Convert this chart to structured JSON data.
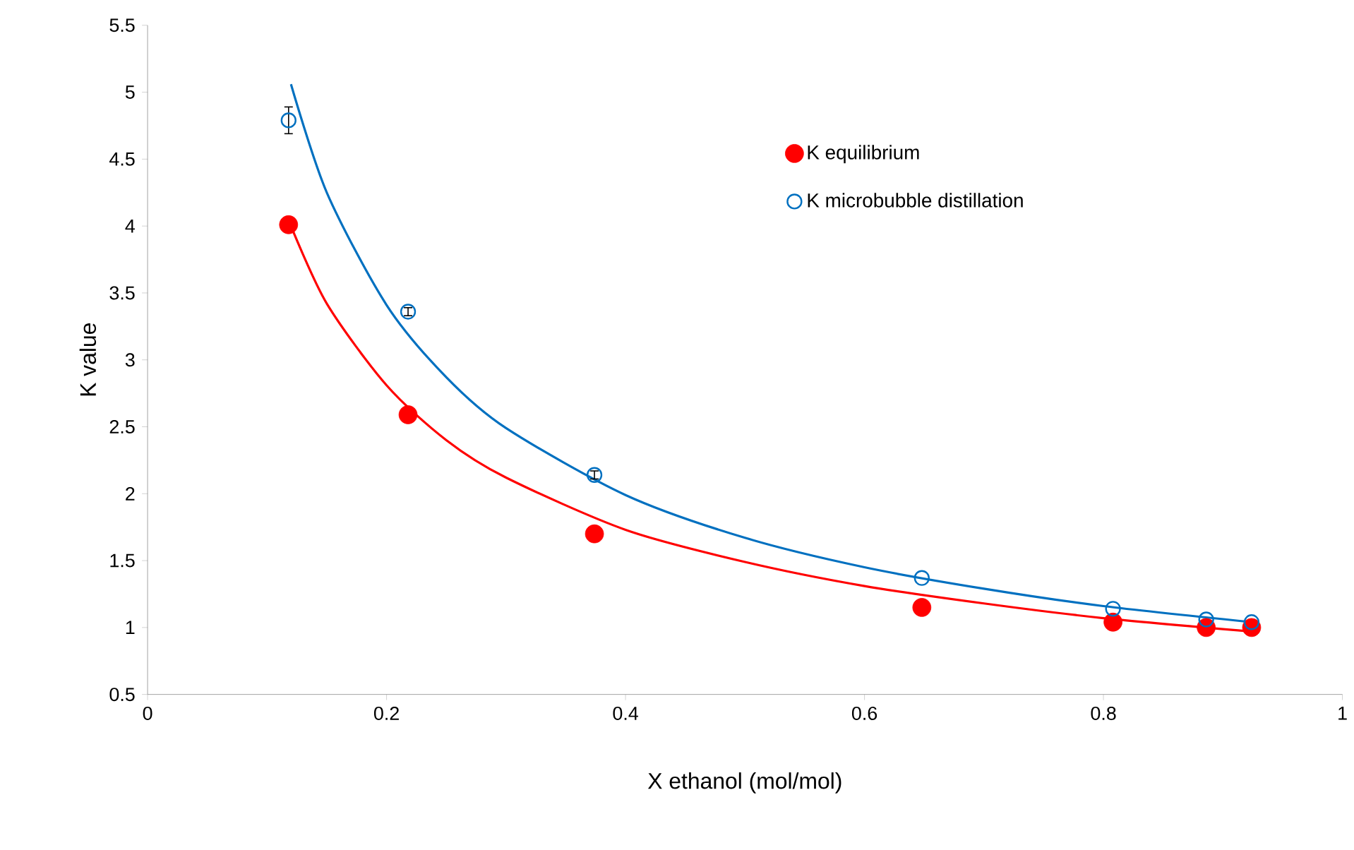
{
  "chart_data": {
    "type": "scatter",
    "xlabel": "X ethanol (mol/mol)",
    "ylabel": "K value",
    "xlim": [
      0,
      1
    ],
    "xticks": [
      0,
      0.2,
      0.4,
      0.6,
      0.8,
      1
    ],
    "ylim": [
      0.5,
      5.5
    ],
    "yticks": [
      0.5,
      1,
      1.5,
      2,
      2.5,
      3,
      3.5,
      4,
      4.5,
      5,
      5.5
    ],
    "grid": false,
    "legend": "top right",
    "series": [
      {
        "name": "K equilibrium",
        "marker": "circle",
        "color": "#ff0000",
        "x": [
          0.118,
          0.218,
          0.374,
          0.648,
          0.808,
          0.886,
          0.924
        ],
        "values": [
          4.01,
          2.59,
          1.7,
          1.15,
          1.04,
          1.0,
          1.0
        ]
      },
      {
        "name": "K microbubble distillation",
        "marker": "circle",
        "color": "#0070c0",
        "x": [
          0.118,
          0.218,
          0.374,
          0.648,
          0.808,
          0.886,
          0.924
        ],
        "values": [
          4.79,
          3.36,
          2.14,
          1.37,
          1.14,
          1.06,
          1.04
        ],
        "errors": [
          0.1,
          0.03,
          0.03,
          null,
          null,
          null,
          null
        ]
      },
      {
        "type": "line",
        "marker": "none",
        "color": "#ff0000",
        "x": [
          0.12,
          0.15,
          0.2,
          0.25,
          0.3,
          0.4,
          0.5,
          0.6,
          0.7,
          0.8,
          0.924
        ],
        "values": [
          4.0,
          3.42,
          2.81,
          2.4,
          2.12,
          1.73,
          1.49,
          1.31,
          1.18,
          1.07,
          0.97
        ]
      },
      {
        "type": "line",
        "marker": "none",
        "color": "#0070c0",
        "x": [
          0.12,
          0.15,
          0.2,
          0.25,
          0.3,
          0.4,
          0.5,
          0.6,
          0.7,
          0.8,
          0.924
        ],
        "values": [
          5.06,
          4.25,
          3.41,
          2.87,
          2.49,
          1.99,
          1.67,
          1.45,
          1.29,
          1.16,
          1.04
        ]
      }
    ]
  }
}
